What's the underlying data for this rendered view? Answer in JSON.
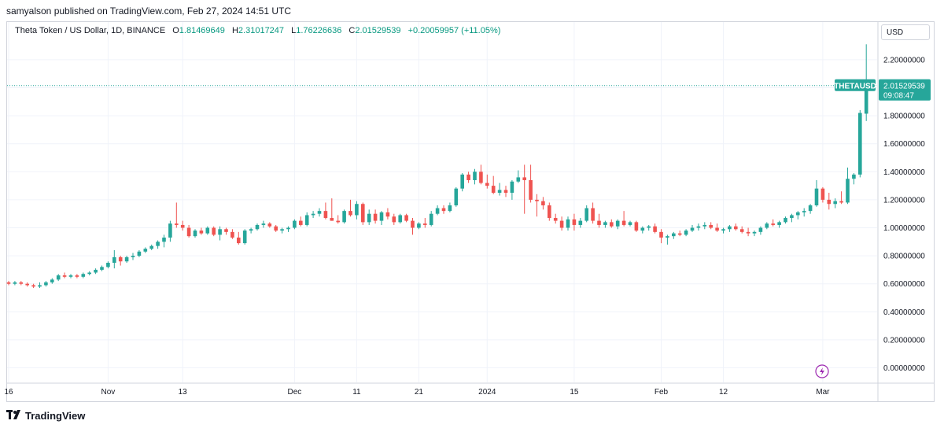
{
  "publisher_line": "samyalson published on TradingView.com, Feb 27, 2024 14:51 UTC",
  "legend": {
    "symbol": "Theta Token / US Dollar, 1D, BINANCE",
    "o_label": "O",
    "o_value": "1.81469649",
    "h_label": "H",
    "h_value": "2.31017247",
    "l_label": "L",
    "l_value": "1.76226636",
    "c_label": "C",
    "c_value": "2.01529539",
    "change": "+0.20059957 (+11.05%)"
  },
  "currency": "USD",
  "last_price": {
    "symbol": "THETAUSD",
    "price": "2.01529539",
    "countdown": "09:08:47",
    "value": 2.01529539
  },
  "brand": "TradingView",
  "colors": {
    "up": "#26a69a",
    "down": "#ef5350",
    "grid": "#f0f3fa",
    "price_line": "#26a69a",
    "alert_icon": "#9c27b0"
  },
  "chart_data": {
    "type": "candlestick",
    "symbol": "THETAUSD",
    "interval": "1D",
    "exchange": "BINANCE",
    "ylim": [
      -0.05,
      2.4
    ],
    "yticks": [
      "2.20000000",
      "2.00000000",
      "1.80000000",
      "1.60000000",
      "1.40000000",
      "1.20000000",
      "1.00000000",
      "0.80000000",
      "0.60000000",
      "0.40000000",
      "0.20000000",
      "0.00000000"
    ],
    "ytick_values": [
      2.2,
      2.0,
      1.8,
      1.6,
      1.4,
      1.2,
      1.0,
      0.8,
      0.6,
      0.4,
      0.2,
      0.0
    ],
    "xtick_labels": [
      "16",
      "Nov",
      "13",
      "Dec",
      "11",
      "21",
      "2024",
      "15",
      "Feb",
      "12",
      "Mar"
    ],
    "xtick_index": [
      0,
      16,
      28,
      46,
      56,
      66,
      77,
      91,
      105,
      115,
      131
    ],
    "grid": true,
    "candles": [
      [
        0.61,
        0.62,
        0.59,
        0.6
      ],
      [
        0.6,
        0.62,
        0.59,
        0.61
      ],
      [
        0.61,
        0.62,
        0.59,
        0.6
      ],
      [
        0.6,
        0.61,
        0.58,
        0.59
      ],
      [
        0.59,
        0.6,
        0.57,
        0.58
      ],
      [
        0.58,
        0.61,
        0.57,
        0.59
      ],
      [
        0.59,
        0.62,
        0.58,
        0.61
      ],
      [
        0.61,
        0.64,
        0.6,
        0.63
      ],
      [
        0.63,
        0.67,
        0.62,
        0.66
      ],
      [
        0.66,
        0.68,
        0.64,
        0.65
      ],
      [
        0.65,
        0.67,
        0.64,
        0.66
      ],
      [
        0.66,
        0.67,
        0.64,
        0.65
      ],
      [
        0.65,
        0.68,
        0.64,
        0.67
      ],
      [
        0.67,
        0.69,
        0.66,
        0.68
      ],
      [
        0.68,
        0.71,
        0.67,
        0.7
      ],
      [
        0.7,
        0.73,
        0.69,
        0.72
      ],
      [
        0.72,
        0.76,
        0.71,
        0.75
      ],
      [
        0.75,
        0.84,
        0.71,
        0.79
      ],
      [
        0.79,
        0.8,
        0.73,
        0.76
      ],
      [
        0.76,
        0.8,
        0.75,
        0.79
      ],
      [
        0.79,
        0.82,
        0.77,
        0.8
      ],
      [
        0.8,
        0.84,
        0.79,
        0.83
      ],
      [
        0.83,
        0.86,
        0.82,
        0.85
      ],
      [
        0.85,
        0.88,
        0.84,
        0.87
      ],
      [
        0.87,
        0.91,
        0.85,
        0.9
      ],
      [
        0.9,
        0.95,
        0.86,
        0.93
      ],
      [
        0.93,
        1.05,
        0.9,
        1.03
      ],
      [
        1.03,
        1.18,
        1.0,
        1.02
      ],
      [
        1.02,
        1.05,
        0.98,
        1.0
      ],
      [
        1.0,
        1.02,
        0.93,
        0.94
      ],
      [
        0.94,
        0.99,
        0.93,
        0.98
      ],
      [
        0.98,
        1.0,
        0.95,
        0.96
      ],
      [
        0.96,
        1.01,
        0.95,
        1.0
      ],
      [
        1.0,
        1.01,
        0.94,
        0.95
      ],
      [
        0.95,
        1.01,
        0.91,
        0.99
      ],
      [
        0.99,
        1.0,
        0.95,
        0.97
      ],
      [
        0.97,
        0.99,
        0.92,
        0.93
      ],
      [
        0.93,
        0.97,
        0.88,
        0.89
      ],
      [
        0.89,
        0.99,
        0.88,
        0.98
      ],
      [
        0.98,
        1.0,
        0.96,
        0.99
      ],
      [
        0.99,
        1.03,
        0.98,
        1.02
      ],
      [
        1.02,
        1.05,
        1.0,
        1.03
      ],
      [
        1.03,
        1.04,
        1.0,
        1.01
      ],
      [
        1.01,
        1.02,
        0.97,
        0.98
      ],
      [
        0.98,
        1.0,
        0.96,
        0.99
      ],
      [
        0.99,
        1.01,
        0.97,
        1.0
      ],
      [
        1.0,
        1.06,
        0.99,
        1.05
      ],
      [
        1.05,
        1.08,
        1.01,
        1.02
      ],
      [
        1.02,
        1.11,
        1.01,
        1.09
      ],
      [
        1.09,
        1.12,
        1.07,
        1.1
      ],
      [
        1.1,
        1.14,
        1.08,
        1.12
      ],
      [
        1.12,
        1.18,
        1.06,
        1.07
      ],
      [
        1.07,
        1.21,
        1.05,
        1.05
      ],
      [
        1.05,
        1.09,
        1.03,
        1.04
      ],
      [
        1.04,
        1.13,
        1.03,
        1.12
      ],
      [
        1.12,
        1.2,
        1.08,
        1.09
      ],
      [
        1.09,
        1.19,
        1.06,
        1.17
      ],
      [
        1.17,
        1.18,
        1.02,
        1.04
      ],
      [
        1.04,
        1.13,
        1.02,
        1.1
      ],
      [
        1.1,
        1.13,
        1.03,
        1.05
      ],
      [
        1.05,
        1.12,
        1.02,
        1.11
      ],
      [
        1.11,
        1.14,
        1.06,
        1.08
      ],
      [
        1.08,
        1.1,
        1.02,
        1.04
      ],
      [
        1.04,
        1.1,
        1.03,
        1.09
      ],
      [
        1.09,
        1.1,
        1.04,
        1.05
      ],
      [
        1.05,
        1.07,
        0.95,
        1.0
      ],
      [
        1.0,
        1.04,
        0.99,
        1.03
      ],
      [
        1.03,
        1.07,
        1.0,
        1.02
      ],
      [
        1.02,
        1.12,
        1.01,
        1.1
      ],
      [
        1.1,
        1.16,
        1.09,
        1.14
      ],
      [
        1.14,
        1.16,
        1.1,
        1.12
      ],
      [
        1.12,
        1.18,
        1.11,
        1.16
      ],
      [
        1.16,
        1.29,
        1.15,
        1.28
      ],
      [
        1.28,
        1.39,
        1.26,
        1.38
      ],
      [
        1.38,
        1.4,
        1.32,
        1.34
      ],
      [
        1.34,
        1.42,
        1.31,
        1.4
      ],
      [
        1.4,
        1.45,
        1.31,
        1.32
      ],
      [
        1.32,
        1.38,
        1.28,
        1.3
      ],
      [
        1.3,
        1.37,
        1.24,
        1.25
      ],
      [
        1.25,
        1.32,
        1.23,
        1.27
      ],
      [
        1.27,
        1.3,
        1.22,
        1.25
      ],
      [
        1.25,
        1.34,
        1.2,
        1.33
      ],
      [
        1.33,
        1.41,
        1.32,
        1.36
      ],
      [
        1.36,
        1.45,
        1.1,
        1.34
      ],
      [
        1.34,
        1.45,
        1.18,
        1.2
      ],
      [
        1.2,
        1.24,
        1.08,
        1.19
      ],
      [
        1.19,
        1.22,
        1.13,
        1.16
      ],
      [
        1.16,
        1.18,
        1.05,
        1.07
      ],
      [
        1.07,
        1.1,
        1.03,
        1.05
      ],
      [
        1.05,
        1.08,
        0.98,
        1.0
      ],
      [
        1.0,
        1.08,
        0.98,
        1.06
      ],
      [
        1.06,
        1.1,
        0.98,
        1.02
      ],
      [
        1.02,
        1.07,
        1.0,
        1.05
      ],
      [
        1.05,
        1.16,
        1.04,
        1.14
      ],
      [
        1.14,
        1.18,
        1.03,
        1.05
      ],
      [
        1.05,
        1.1,
        1.0,
        1.02
      ],
      [
        1.02,
        1.05,
        1.0,
        1.04
      ],
      [
        1.04,
        1.06,
        1.0,
        1.01
      ],
      [
        1.01,
        1.06,
        0.99,
        1.05
      ],
      [
        1.05,
        1.12,
        1.01,
        1.02
      ],
      [
        1.02,
        1.05,
        1.01,
        1.04
      ],
      [
        1.04,
        1.05,
        0.97,
        0.98
      ],
      [
        0.98,
        1.01,
        0.96,
        1.0
      ],
      [
        1.0,
        1.02,
        0.98,
        1.01
      ],
      [
        1.01,
        1.03,
        0.96,
        0.97
      ],
      [
        0.97,
        0.99,
        0.89,
        0.93
      ],
      [
        0.93,
        0.95,
        0.88,
        0.94
      ],
      [
        0.94,
        0.97,
        0.92,
        0.96
      ],
      [
        0.96,
        0.98,
        0.94,
        0.95
      ],
      [
        0.95,
        0.99,
        0.94,
        0.98
      ],
      [
        0.98,
        1.02,
        0.97,
        1.0
      ],
      [
        1.0,
        1.03,
        0.98,
        1.01
      ],
      [
        1.01,
        1.04,
        0.99,
        1.02
      ],
      [
        1.02,
        1.04,
        0.99,
        1.0
      ],
      [
        1.0,
        1.03,
        0.97,
        0.98
      ],
      [
        0.98,
        1.0,
        0.96,
        0.99
      ],
      [
        0.99,
        1.02,
        0.97,
        1.01
      ],
      [
        1.01,
        1.03,
        0.98,
        0.99
      ],
      [
        0.99,
        1.01,
        0.96,
        0.97
      ],
      [
        0.97,
        1.0,
        0.94,
        0.96
      ],
      [
        0.96,
        0.98,
        0.94,
        0.97
      ],
      [
        0.97,
        1.01,
        0.95,
        1.0
      ],
      [
        1.0,
        1.04,
        0.99,
        1.03
      ],
      [
        1.03,
        1.06,
        1.01,
        1.02
      ],
      [
        1.02,
        1.05,
        1.0,
        1.04
      ],
      [
        1.04,
        1.08,
        1.03,
        1.07
      ],
      [
        1.07,
        1.1,
        1.04,
        1.09
      ],
      [
        1.09,
        1.12,
        1.06,
        1.11
      ],
      [
        1.11,
        1.14,
        1.08,
        1.12
      ],
      [
        1.12,
        1.17,
        1.1,
        1.16
      ],
      [
        1.16,
        1.34,
        1.15,
        1.28
      ],
      [
        1.28,
        1.29,
        1.18,
        1.2
      ],
      [
        1.2,
        1.25,
        1.13,
        1.17
      ],
      [
        1.17,
        1.21,
        1.14,
        1.19
      ],
      [
        1.19,
        1.26,
        1.17,
        1.18
      ],
      [
        1.18,
        1.43,
        1.17,
        1.35
      ],
      [
        1.35,
        1.39,
        1.31,
        1.38
      ],
      [
        1.38,
        1.84,
        1.36,
        1.82
      ],
      [
        1.81469649,
        2.31017247,
        1.76226636,
        2.01529539
      ]
    ]
  }
}
